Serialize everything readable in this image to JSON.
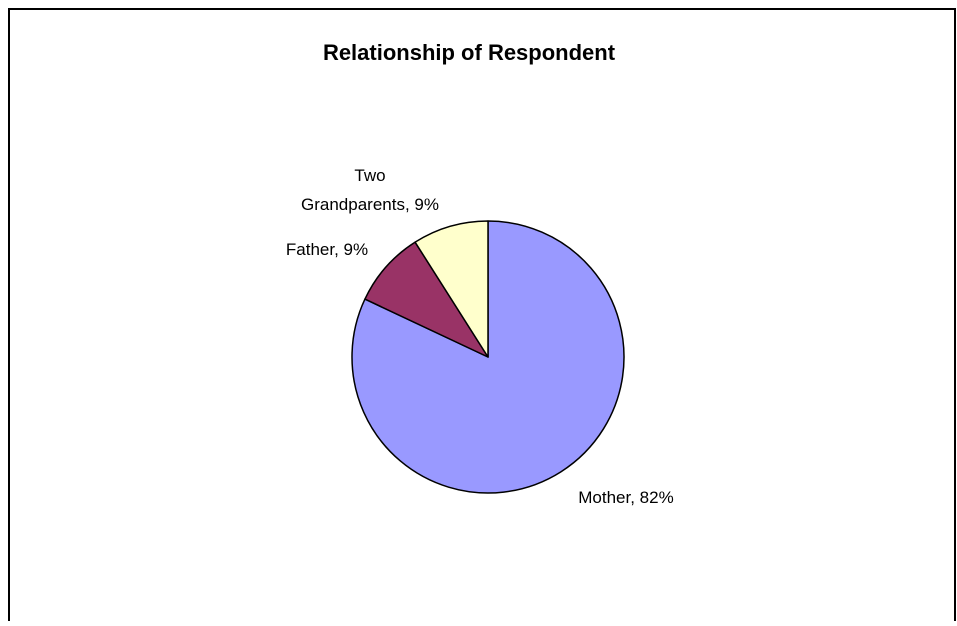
{
  "chart_data": {
    "type": "pie",
    "title": "Relationship of Respondent",
    "start_angle_deg": 0,
    "direction": "clockwise",
    "legend": "none",
    "slices": [
      {
        "label": "Mother, 82%",
        "lines": [
          "Mother, 82%"
        ],
        "value": 82,
        "color": "#9999ff"
      },
      {
        "label": "Father, 9%",
        "lines": [
          "Father, 9%"
        ],
        "value": 9,
        "color": "#993366"
      },
      {
        "label": "Two Grandparents, 9%",
        "lines": [
          "Two",
          "Grandparents, 9%"
        ],
        "value": 9,
        "color": "#ffffcc"
      }
    ],
    "border_color": "#000000",
    "background": "#ffffff"
  }
}
